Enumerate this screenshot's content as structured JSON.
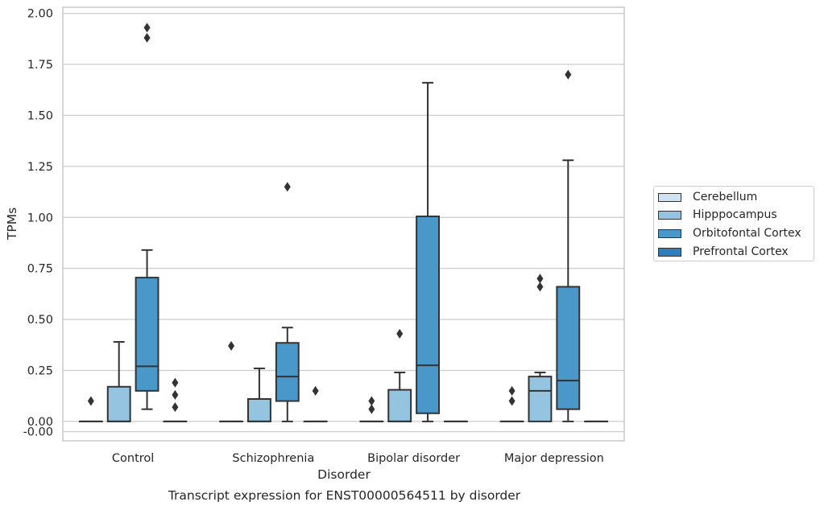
{
  "chart_data": {
    "type": "box",
    "title": "",
    "xlabel": "Disorder",
    "ylabel": "TPMs",
    "ylim": [
      -0.095,
      2.03
    ],
    "yticks": [
      "2.00",
      "1.75",
      "1.50",
      "1.25",
      "1.00",
      "0.75",
      "0.50",
      "0.25",
      "0.00",
      "-0.00"
    ],
    "categories": [
      "Control",
      "Schizophrenia",
      "Bipolar disorder",
      "Major depression"
    ],
    "grid": true,
    "legend_position": "right",
    "series": [
      {
        "name": "Cerebellum",
        "color": "#d0e1f2",
        "boxes": [
          {
            "q1": 0,
            "median": 0,
            "q3": 0,
            "whisker_low": 0,
            "whisker_high": 0,
            "outliers": [
              0.1
            ]
          },
          {
            "q1": 0,
            "median": 0,
            "q3": 0,
            "whisker_low": 0,
            "whisker_high": 0,
            "outliers": [
              0.37
            ]
          },
          {
            "q1": 0,
            "median": 0,
            "q3": 0,
            "whisker_low": 0,
            "whisker_high": 0,
            "outliers": [
              0.1,
              0.06
            ]
          },
          {
            "q1": 0,
            "median": 0,
            "q3": 0,
            "whisker_low": 0,
            "whisker_high": 0,
            "outliers": [
              0.15,
              0.1
            ]
          }
        ]
      },
      {
        "name": "Hipppocampus",
        "color": "#94c4df",
        "boxes": [
          {
            "q1": 0,
            "median": 0,
            "q3": 0.17,
            "whisker_low": 0,
            "whisker_high": 0.39,
            "outliers": []
          },
          {
            "q1": 0,
            "median": 0,
            "q3": 0.11,
            "whisker_low": 0,
            "whisker_high": 0.26,
            "outliers": []
          },
          {
            "q1": 0,
            "median": 0,
            "q3": 0.155,
            "whisker_low": 0,
            "whisker_high": 0.24,
            "outliers": [
              0.43
            ]
          },
          {
            "q1": 0,
            "median": 0.15,
            "q3": 0.22,
            "whisker_low": 0,
            "whisker_high": 0.24,
            "outliers": [
              0.7,
              0.66
            ]
          }
        ]
      },
      {
        "name": "Orbitofontal Cortex",
        "color": "#4a98c9",
        "boxes": [
          {
            "q1": 0.15,
            "median": 0.27,
            "q3": 0.705,
            "whisker_low": 0.06,
            "whisker_high": 0.84,
            "outliers": [
              1.93,
              1.88
            ]
          },
          {
            "q1": 0.1,
            "median": 0.22,
            "q3": 0.385,
            "whisker_low": 0,
            "whisker_high": 0.46,
            "outliers": [
              1.15
            ]
          },
          {
            "q1": 0.04,
            "median": 0.275,
            "q3": 1.005,
            "whisker_low": 0,
            "whisker_high": 1.66,
            "outliers": []
          },
          {
            "q1": 0.06,
            "median": 0.2,
            "q3": 0.66,
            "whisker_low": 0,
            "whisker_high": 1.28,
            "outliers": [
              1.7
            ]
          }
        ]
      },
      {
        "name": "Prefrontal Cortex",
        "color": "#2e7ebc",
        "boxes": [
          {
            "q1": 0,
            "median": 0,
            "q3": 0,
            "whisker_low": 0,
            "whisker_high": 0,
            "outliers": [
              0.19,
              0.13,
              0.07
            ]
          },
          {
            "q1": 0,
            "median": 0,
            "q3": 0,
            "whisker_low": 0,
            "whisker_high": 0,
            "outliers": [
              0.15
            ]
          },
          {
            "q1": 0,
            "median": 0,
            "q3": 0,
            "whisker_low": 0,
            "whisker_high": 0,
            "outliers": []
          },
          {
            "q1": 0,
            "median": 0,
            "q3": 0,
            "whisker_low": 0,
            "whisker_high": 0,
            "outliers": []
          }
        ]
      }
    ]
  },
  "caption": "Transcript expression for ENST00000564511 by disorder"
}
